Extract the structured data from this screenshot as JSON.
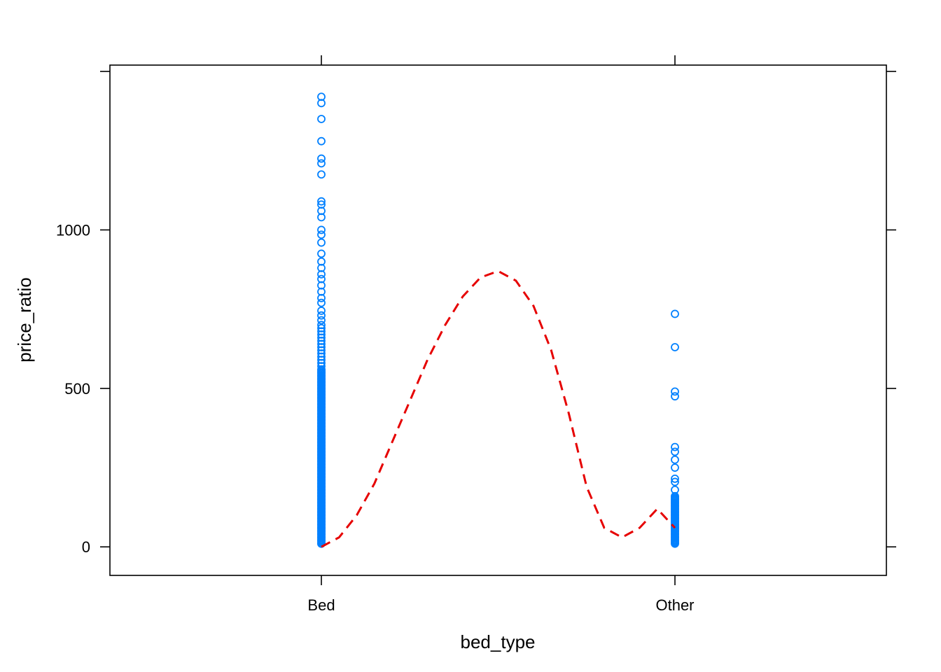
{
  "chart_data": {
    "type": "scatter",
    "title": "",
    "xlabel": "bed_type",
    "ylabel": "price_ratio",
    "categories": [
      "Bed",
      "Other"
    ],
    "ylim": [
      -90,
      1520
    ],
    "yticks": [
      0,
      500,
      1000
    ],
    "grid": false,
    "legend": "none",
    "colors": {
      "points": "#0080ff",
      "smooth": "#e60000",
      "axes": "#000000"
    },
    "series": [
      {
        "category": "Bed",
        "points": [
          1420,
          1400,
          1350,
          1280,
          1225,
          1210,
          1175,
          1090,
          1080,
          1060,
          1040,
          1000,
          985,
          960,
          925,
          900,
          880,
          860,
          845,
          825,
          805,
          785,
          770,
          745,
          730,
          715,
          700,
          690,
          680,
          670,
          660,
          650,
          640,
          630,
          620,
          610,
          600,
          590,
          580,
          570,
          560,
          550,
          540,
          530,
          520,
          510,
          500,
          490,
          480,
          470,
          460,
          450,
          440,
          430,
          420,
          410,
          400,
          390,
          380,
          370,
          360,
          350,
          340,
          330,
          320,
          310,
          300,
          290,
          280,
          270,
          260,
          250,
          240,
          230,
          220,
          210,
          200,
          190,
          180,
          170,
          160,
          150,
          140,
          130,
          120,
          110,
          100,
          90,
          80,
          70,
          60,
          50,
          40,
          30,
          20,
          10
        ]
      },
      {
        "category": "Other",
        "points": [
          735,
          630,
          490,
          475,
          315,
          300,
          275,
          250,
          215,
          205,
          180,
          160,
          150,
          140,
          130,
          120,
          110,
          100,
          90,
          80,
          70,
          60,
          50,
          40,
          30,
          20,
          12
        ]
      }
    ],
    "smooth_line": {
      "style": "dashed",
      "x": [
        1.0,
        1.05,
        1.1,
        1.15,
        1.2,
        1.25,
        1.3,
        1.35,
        1.4,
        1.45,
        1.5,
        1.55,
        1.6,
        1.65,
        1.7,
        1.75,
        1.8,
        1.85,
        1.9,
        1.95,
        2.0
      ],
      "y": [
        0,
        30,
        100,
        200,
        330,
        460,
        590,
        700,
        790,
        850,
        870,
        840,
        760,
        620,
        420,
        190,
        60,
        30,
        60,
        120,
        60
      ]
    }
  }
}
